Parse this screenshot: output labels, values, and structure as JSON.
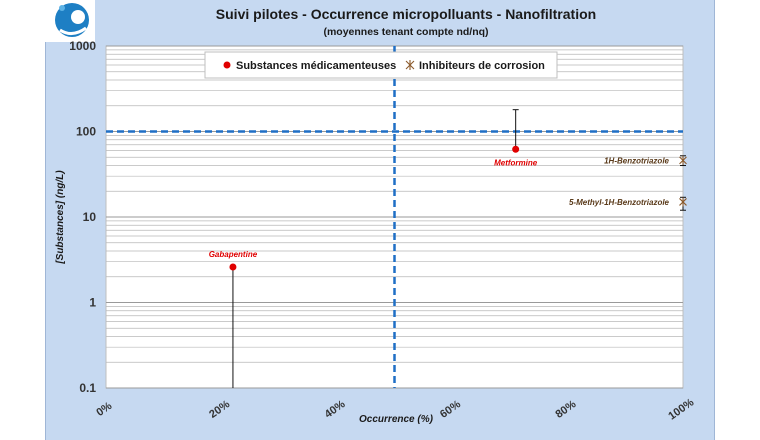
{
  "chart_data": {
    "type": "scatter",
    "title": "Suivi pilotes - Occurrence micropolluants - Nanofiltration",
    "subtitle": "(moyennes tenant compte nd/nq)",
    "xlabel": "Occurrence (%)",
    "ylabel": "[Substances] (ng/L)",
    "x_ticks": [
      "0%",
      "20%",
      "40%",
      "60%",
      "80%",
      "100%"
    ],
    "y_ticks": [
      "0.1",
      "1",
      "10",
      "100",
      "1000"
    ],
    "xlim": [
      0,
      100
    ],
    "ylim": [
      0.1,
      1000
    ],
    "y_scale": "log",
    "grid": true,
    "legend_position": "top",
    "reference_lines": [
      {
        "orientation": "vertical",
        "x": 50
      },
      {
        "orientation": "horizontal",
        "y": 100
      }
    ],
    "series": [
      {
        "name": "Substances médicamenteuses",
        "marker": "circle",
        "color": "#e00000",
        "points": [
          {
            "label": "Gabapentine",
            "x": 22,
            "y": 2.6,
            "err_low": 0.1,
            "err_high": 2.6
          },
          {
            "label": "Metformine",
            "x": 71,
            "y": 62,
            "err_low": 62,
            "err_high": 180
          }
        ]
      },
      {
        "name": "Inhibiteurs de corrosion",
        "marker": "star",
        "color": "#8b5a2b",
        "points": [
          {
            "label": "1H-Benzotriazole",
            "x": 100,
            "y": 46,
            "err_low": 40,
            "err_high": 52
          },
          {
            "label": "5-Methyl-1H-Benzotriazole",
            "x": 100,
            "y": 15,
            "err_low": 12,
            "err_high": 17
          }
        ]
      }
    ]
  }
}
